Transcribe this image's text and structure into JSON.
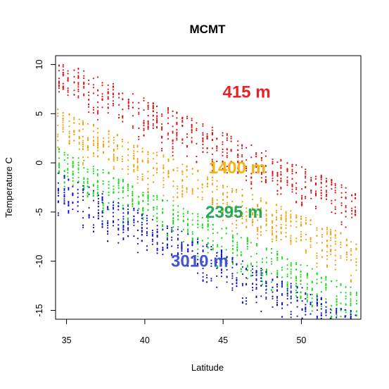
{
  "chart_data": {
    "type": "scatter",
    "title": "MCMT",
    "xlabel": "Latitude",
    "ylabel": "Temperature C",
    "xlim": [
      34.3,
      53.8
    ],
    "ylim": [
      -15.9,
      10.9
    ],
    "xticks": [
      35,
      40,
      45,
      50
    ],
    "yticks": [
      10,
      5,
      0,
      -5,
      -10,
      -15
    ],
    "grid": false,
    "legend": "none",
    "series": [
      {
        "elevation": "415 m",
        "color": "#dd1111",
        "lat_range": [
          34.5,
          53.8
        ],
        "t_start": 10.5,
        "t_end": -3.0,
        "x": [
          34.6,
          53.7
        ],
        "y": [
          10.6,
          -2.6
        ]
      },
      {
        "elevation": "1400 m",
        "color": "#f0a000",
        "lat_range": [
          34.5,
          53.8
        ],
        "t_start": 5.5,
        "t_end": -8.0,
        "x": [
          34.6,
          53.7
        ],
        "y": [
          5.7,
          -7.8
        ]
      },
      {
        "elevation": "2395 m",
        "color": "#11dd11",
        "lat_range": [
          34.5,
          53.8
        ],
        "t_start": 1.5,
        "t_end": -13.0,
        "x": [
          34.6,
          53.7
        ],
        "y": [
          1.7,
          -12.8
        ]
      },
      {
        "elevation": "3010 m",
        "color": "#1111cc",
        "lat_range": [
          34.5,
          53.8
        ],
        "t_start": -1.0,
        "t_end": -15.5,
        "x": [
          34.6,
          53.7
        ],
        "y": [
          -0.8,
          -15.4
        ]
      }
    ],
    "annotations": [
      {
        "text": "415 m",
        "x": 46.5,
        "y": 7.2,
        "color": "#e8202a"
      },
      {
        "text": "1400 m",
        "x": 45.9,
        "y": -0.5,
        "color": "#f5b214"
      },
      {
        "text": "2395 m",
        "x": 45.7,
        "y": -5.0,
        "color": "#22aa55"
      },
      {
        "text": "3010 m",
        "x": 43.5,
        "y": -10.0,
        "color": "#4455cc"
      }
    ]
  }
}
